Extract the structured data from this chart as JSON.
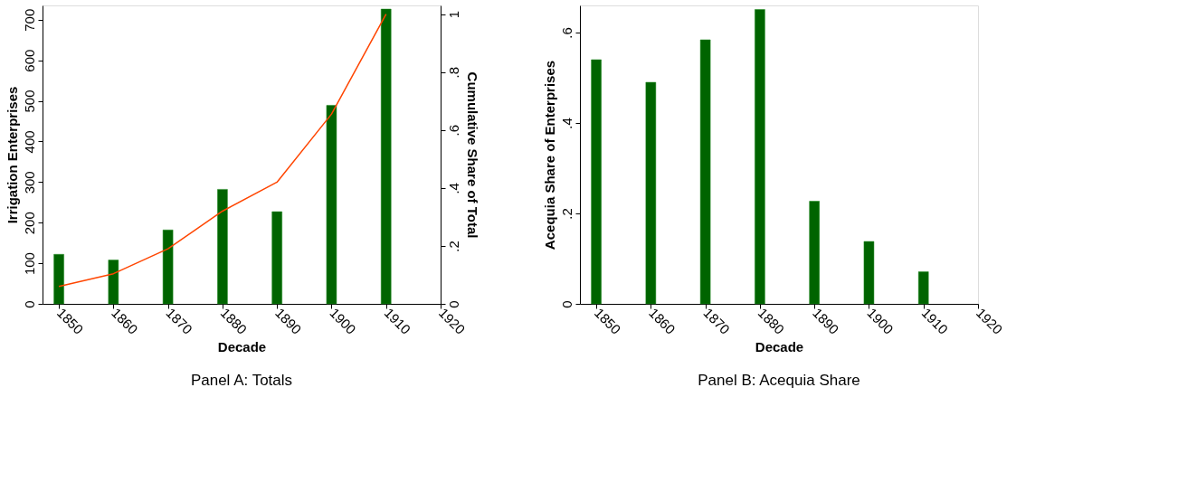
{
  "chart_data": [
    {
      "type": "bar",
      "title": "Panel A: Totals",
      "xlabel": "Decade",
      "ylabel": "Irrigation Enterprises",
      "y2label": "Cumulative Share of Total",
      "x": [
        1850,
        1860,
        1870,
        1880,
        1890,
        1900,
        1910
      ],
      "series": [
        {
          "color": "#006400",
          "values": [
            122,
            108,
            182,
            282,
            227,
            489,
            726
          ]
        },
        {
          "type": "line",
          "axis": "y2",
          "color": "#ff4500",
          "values": [
            0.06,
            0.104,
            0.19,
            0.32,
            0.42,
            0.655,
            1.0
          ]
        }
      ],
      "xlim": [
        1847,
        1920
      ],
      "xticks": [
        1850,
        1860,
        1870,
        1880,
        1890,
        1900,
        1910,
        1920
      ],
      "ylim": [
        0,
        735
      ],
      "yticks": [
        0,
        100,
        200,
        300,
        400,
        500,
        600,
        700
      ],
      "y2lim": [
        0,
        1.03
      ],
      "y2ticks": [
        0,
        {
          "value": 0.2,
          "label": ".2"
        },
        {
          "value": 0.4,
          "label": ".4"
        },
        {
          "value": 0.6,
          "label": ".6"
        },
        {
          "value": 0.8,
          "label": ".8"
        },
        1
      ],
      "grid": false,
      "legend": false
    },
    {
      "type": "bar",
      "title": "Panel B: Acequia Share",
      "xlabel": "Decade",
      "ylabel": "Acequia Share of Enterprises",
      "x": [
        1850,
        1860,
        1870,
        1880,
        1890,
        1900,
        1910
      ],
      "series": [
        {
          "color": "#006400",
          "values": [
            0.54,
            0.49,
            0.584,
            0.651,
            0.227,
            0.138,
            0.071
          ]
        }
      ],
      "xlim": [
        1847,
        1920
      ],
      "xticks": [
        1850,
        1860,
        1870,
        1880,
        1890,
        1900,
        1910,
        1920
      ],
      "ylim": [
        0,
        0.66
      ],
      "yticks": [
        0,
        {
          "value": 0.2,
          "label": ".2"
        },
        {
          "value": 0.4,
          "label": ".4"
        },
        {
          "value": 0.6,
          "label": ".6"
        }
      ],
      "grid": false,
      "legend": false
    }
  ]
}
